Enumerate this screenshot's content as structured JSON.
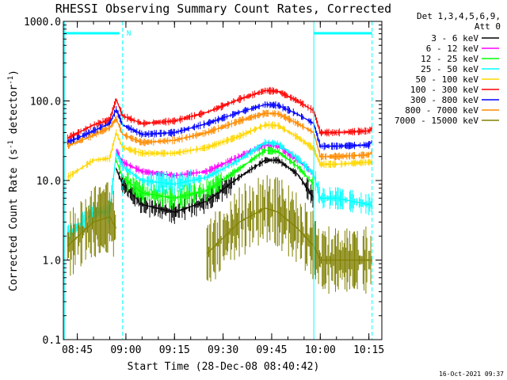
{
  "chart_data": {
    "type": "line",
    "title": "RHESSI Observing Summary Count Rates, Corrected",
    "xlabel": "Start Time (28-Dec-08 08:40:42)",
    "ylabel": "Corrected Count Rate (s",
    "ylabel_sup": "-1",
    "ylabel_mid": " detector",
    "ylabel_tail": ")",
    "y_scale": "log",
    "ylim": [
      0.1,
      1000
    ],
    "xlim": [
      "08:40:42",
      "10:19:00"
    ],
    "grid": false,
    "legend_position": "top-right",
    "y_ticks": [
      "0.1",
      "1.0",
      "10.0",
      "100.0",
      "1000.0"
    ],
    "x_ticks": [
      "08:45",
      "09:00",
      "09:15",
      "09:30",
      "09:45",
      "10:00",
      "10:15"
    ],
    "legend_header": [
      "Det 1,3,4,5,6,9,",
      "Att 0"
    ],
    "attenuator_marker": "N",
    "timestamp": "16-Oct-2021 09:37",
    "x": [
      "08:42",
      "08:50",
      "08:55",
      "08:57",
      "08:59",
      "09:05",
      "09:15",
      "09:25",
      "09:35",
      "09:43",
      "09:47",
      "09:53",
      "09:58",
      "10:00",
      "10:05",
      "10:15",
      "10:16"
    ],
    "series": [
      {
        "name": "3 - 6 keV",
        "color": "#000000",
        "values": [
          null,
          null,
          null,
          14,
          9,
          5,
          4,
          5.5,
          11,
          18,
          18,
          12,
          6,
          null,
          null,
          null,
          null
        ]
      },
      {
        "name": "6 - 12 keV",
        "color": "#ff00ff",
        "values": [
          null,
          null,
          null,
          24,
          17,
          13,
          11.5,
          13,
          20,
          28,
          27,
          18,
          12,
          null,
          null,
          null,
          null
        ]
      },
      {
        "name": "12 - 25 keV",
        "color": "#00ff00",
        "values": [
          null,
          null,
          null,
          18,
          11,
          7,
          6,
          7.5,
          14,
          24,
          23,
          15,
          9,
          null,
          null,
          null,
          null
        ]
      },
      {
        "name": "25 - 50 keV",
        "color": "#00ffff",
        "values": [
          2,
          4,
          4,
          22,
          15,
          10,
          9,
          11,
          18,
          30,
          29,
          19,
          12,
          6,
          6,
          5,
          5
        ]
      },
      {
        "name": "50 - 100 keV",
        "color": "#ffd700",
        "values": [
          11,
          18,
          19,
          40,
          26,
          22,
          22,
          26,
          36,
          50,
          49,
          35,
          25,
          16,
          16,
          17,
          17
        ]
      },
      {
        "name": "100 - 300 keV",
        "color": "#ff0000",
        "values": [
          34,
          50,
          58,
          105,
          65,
          52,
          56,
          72,
          105,
          135,
          132,
          100,
          75,
          40,
          40,
          42,
          45
        ]
      },
      {
        "name": "300 - 800 keV",
        "color": "#0000ff",
        "values": [
          30,
          42,
          52,
          78,
          50,
          38,
          40,
          52,
          72,
          90,
          88,
          68,
          52,
          27,
          27,
          28,
          31
        ]
      },
      {
        "name": "800 - 7000 keV",
        "color": "#ff8c00",
        "values": [
          27,
          37,
          46,
          60,
          38,
          30,
          32,
          40,
          56,
          70,
          69,
          52,
          40,
          20,
          20,
          21,
          23
        ]
      },
      {
        "name": "7000 - 15000 keV",
        "color": "#808000",
        "values": [
          1.5,
          3,
          3.5,
          2.5,
          null,
          null,
          null,
          1.2,
          3,
          4.5,
          4,
          2.5,
          1.5,
          1,
          1,
          1,
          1
        ]
      }
    ]
  }
}
